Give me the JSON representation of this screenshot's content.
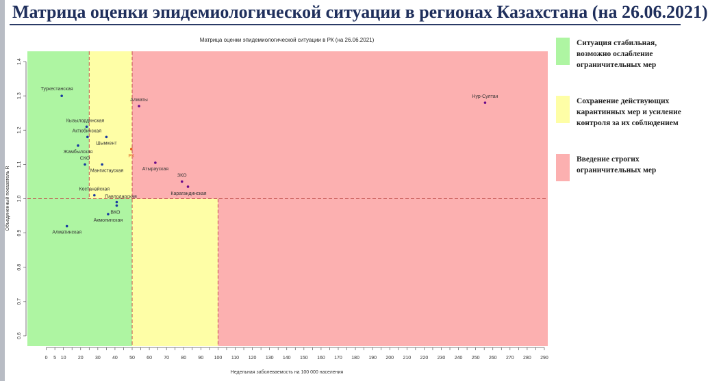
{
  "slide_title": "Матрица оценки эпидемиологической ситуации в регионах Казахстана (на 26.06.2021)",
  "legend": [
    {
      "color": "#aef5a2",
      "text": "Ситуация стабильная, возможно ослабление ограничительных мер"
    },
    {
      "color": "#fefea6",
      "text": "Сохранение действующих карантинных мер и усиление контроля за их соблюдением"
    },
    {
      "color": "#fcb0b0",
      "text": "Введение строгих ограничительных мер"
    }
  ],
  "chart_data": {
    "type": "scatter",
    "title": "Матрица оценки эпидемиологической ситуации в РК (на 26.06.2021)",
    "xlabel": "Недельная заболеваемость на 100 000 населения",
    "ylabel": "Объединенный показатель R",
    "xlim": [
      -11,
      292
    ],
    "ylim": [
      0.57,
      1.43
    ],
    "x_ticks": [
      0,
      5,
      10,
      20,
      30,
      40,
      50,
      60,
      70,
      80,
      90,
      100,
      110,
      120,
      130,
      140,
      150,
      160,
      170,
      180,
      190,
      200,
      210,
      220,
      230,
      240,
      250,
      260,
      270,
      280,
      290
    ],
    "y_ticks": [
      0.6,
      0.7,
      0.8,
      0.9,
      1.0,
      1.1,
      1.2,
      1.3,
      1.4
    ],
    "grid": false,
    "thresholds": {
      "x_upper": [
        25,
        50
      ],
      "x_lower": [
        50,
        100
      ],
      "y": 1.0
    },
    "zone_colors": {
      "green": "#aef5a2",
      "yellow": "#fefea6",
      "red": "#fcb0b0"
    },
    "points": [
      {
        "label": "Туркестанская",
        "x": 9,
        "y": 1.3
      },
      {
        "label": "Кызылординская",
        "x": 23.5,
        "y": 1.21
      },
      {
        "label": "Актюбинская",
        "x": 24,
        "y": 1.18
      },
      {
        "label": "Жамбылская",
        "x": 18.5,
        "y": 1.155
      },
      {
        "label": "Шымкент",
        "x": 35,
        "y": 1.18
      },
      {
        "label": "СКО",
        "x": 22.5,
        "y": 1.1
      },
      {
        "label": "Мангистауская",
        "x": 32.5,
        "y": 1.1
      },
      {
        "label": "Костанайская",
        "x": 28,
        "y": 1.01
      },
      {
        "label": "Павлодарская",
        "x": 41,
        "y": 0.99
      },
      {
        "label": "ВКО",
        "x": 41,
        "y": 0.98
      },
      {
        "label": "Акмолинская",
        "x": 36,
        "y": 0.955
      },
      {
        "label": "Алматинская",
        "x": 12,
        "y": 0.92
      },
      {
        "label": "Алматы",
        "x": 54,
        "y": 1.27
      },
      {
        "label": "РК",
        "x": 49.5,
        "y": 1.145
      },
      {
        "label": "Атырауская",
        "x": 63.5,
        "y": 1.105
      },
      {
        "label": "ЗКО",
        "x": 79,
        "y": 1.05
      },
      {
        "label": "Карагандинская",
        "x": 82.5,
        "y": 1.035
      },
      {
        "label": "Нур-Султан",
        "x": 255.5,
        "y": 1.28
      }
    ]
  }
}
